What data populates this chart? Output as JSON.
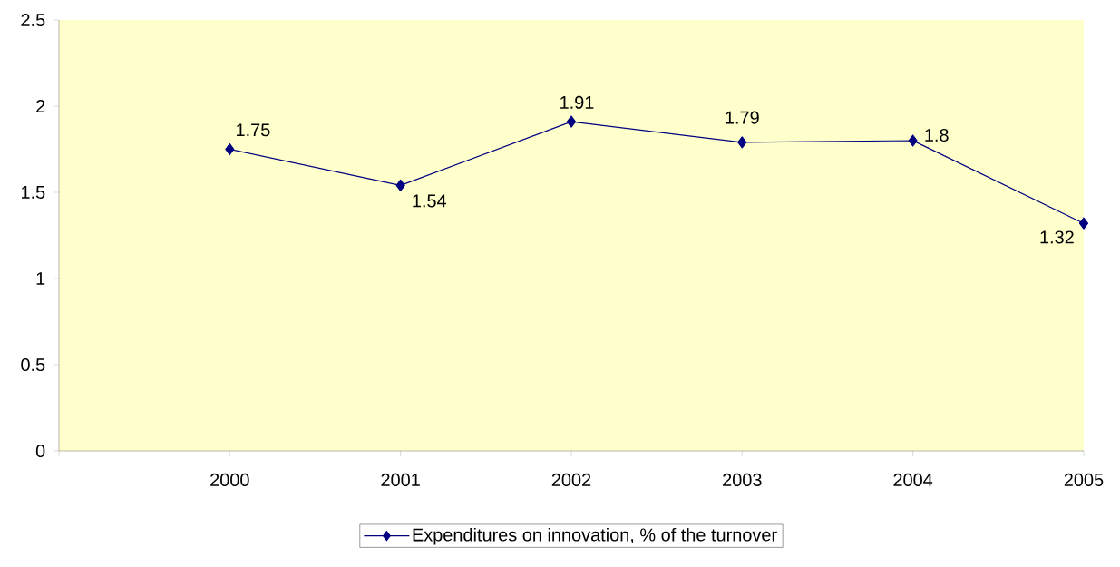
{
  "chart_data": {
    "type": "line",
    "x": [
      2000,
      2001,
      2002,
      2003,
      2004,
      2005
    ],
    "series": [
      {
        "name": "Expenditures on innovation, % of the turnover",
        "color": "#000080",
        "values": [
          1.75,
          1.54,
          1.91,
          1.79,
          1.8,
          1.32
        ]
      }
    ],
    "xlim": [
      1999,
      2005
    ],
    "xticks": [
      {
        "value": 1999,
        "label": null
      },
      2000,
      2001,
      2002,
      2003,
      2004,
      2005
    ],
    "ylim": [
      0,
      2.5
    ],
    "yticks": [
      0,
      0.5,
      1,
      1.5,
      2,
      2.5
    ],
    "data_labels": true,
    "marker": "diamond",
    "line_style": "solid",
    "legend": "bottom",
    "grid": false
  }
}
